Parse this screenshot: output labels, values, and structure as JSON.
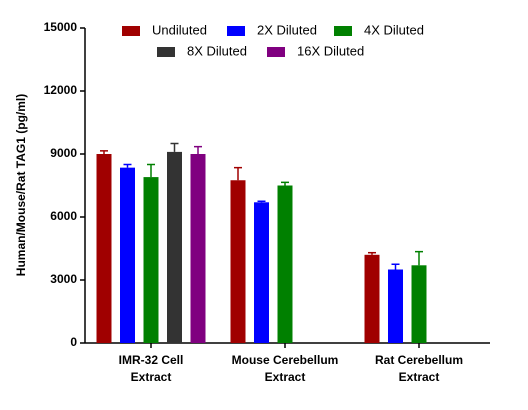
{
  "chart_data": {
    "type": "bar",
    "y_label": "Human/Mouse/Rat TAG1 (pg/ml)",
    "categories": [
      "IMR-32 Cell\nExtract",
      "Mouse Cerebellum\nExtract",
      "Rat Cerebellum\nExtract"
    ],
    "series": [
      {
        "name": "Undiluted",
        "color": "#a00000",
        "values": [
          9000,
          7750,
          4200
        ],
        "errors": [
          150,
          600,
          100
        ]
      },
      {
        "name": "2X Diluted",
        "color": "#0000ff",
        "values": [
          8350,
          6700,
          3500
        ],
        "errors": [
          150,
          50,
          250
        ]
      },
      {
        "name": "4X Diluted",
        "color": "#008000",
        "values": [
          7900,
          7500,
          3700
        ],
        "errors": [
          600,
          150,
          650
        ]
      },
      {
        "name": "8X Diluted",
        "color": "#333333",
        "values": [
          9100,
          null,
          null
        ],
        "errors": [
          400,
          null,
          null
        ]
      },
      {
        "name": "16X Diluted",
        "color": "#800080",
        "values": [
          9000,
          null,
          null
        ],
        "errors": [
          350,
          null,
          null
        ]
      }
    ],
    "ylim": [
      0,
      15000
    ],
    "yticks": [
      0,
      3000,
      6000,
      9000,
      12000,
      15000
    ],
    "grid": false,
    "legend": "top"
  }
}
